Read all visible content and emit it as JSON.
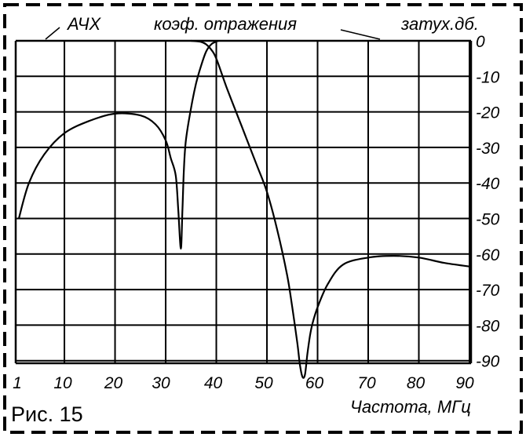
{
  "figure_label": "Рис. 15",
  "chart_data": {
    "type": "line",
    "title": "",
    "xlabel": "Частота, МГц",
    "ylabel": "затух.дб.",
    "x_ticks": [
      "1",
      "10",
      "20",
      "30",
      "40",
      "50",
      "60",
      "70",
      "80",
      "90"
    ],
    "y_ticks": [
      "0",
      "-10",
      "-20",
      "-30",
      "-40",
      "-50",
      "-60",
      "-70",
      "-80",
      "-90"
    ],
    "xlim": [
      1,
      90
    ],
    "ylim": [
      -95,
      0
    ],
    "grid": true,
    "curve_labels": [
      "АЧХ",
      "коэф. отражения"
    ],
    "series": [
      {
        "name": "АЧХ",
        "x": [
          1,
          3,
          6,
          10,
          15,
          20,
          25,
          28,
          30,
          31,
          32,
          32.5,
          33,
          33.3,
          33.6,
          34,
          35,
          36,
          37,
          38,
          39,
          40,
          40.5
        ],
        "y": [
          -50,
          -40,
          -32,
          -26,
          -22.5,
          -20.5,
          -21,
          -23.5,
          -28,
          -33,
          -38,
          -48,
          -58.5,
          -48,
          -36,
          -28,
          -19,
          -12,
          -7,
          -3,
          -1,
          -0.2,
          0
        ]
      },
      {
        "name": "коэф. отражения",
        "x": [
          35,
          36,
          37,
          38,
          39,
          40,
          42,
          45,
          48,
          50,
          52,
          54,
          55,
          56,
          56.5,
          57,
          57.5,
          58,
          58.5,
          59,
          60,
          62,
          65,
          70,
          75,
          80,
          85,
          90
        ],
        "y": [
          0,
          -0.1,
          -0.3,
          -1,
          -2.5,
          -5,
          -13,
          -24,
          -35,
          -42.5,
          -53,
          -66,
          -75,
          -85,
          -91,
          -94.5,
          -94,
          -88,
          -83,
          -79.5,
          -75,
          -68.5,
          -63,
          -61,
          -60.5,
          -61,
          -62.5,
          -63.5
        ]
      }
    ]
  }
}
